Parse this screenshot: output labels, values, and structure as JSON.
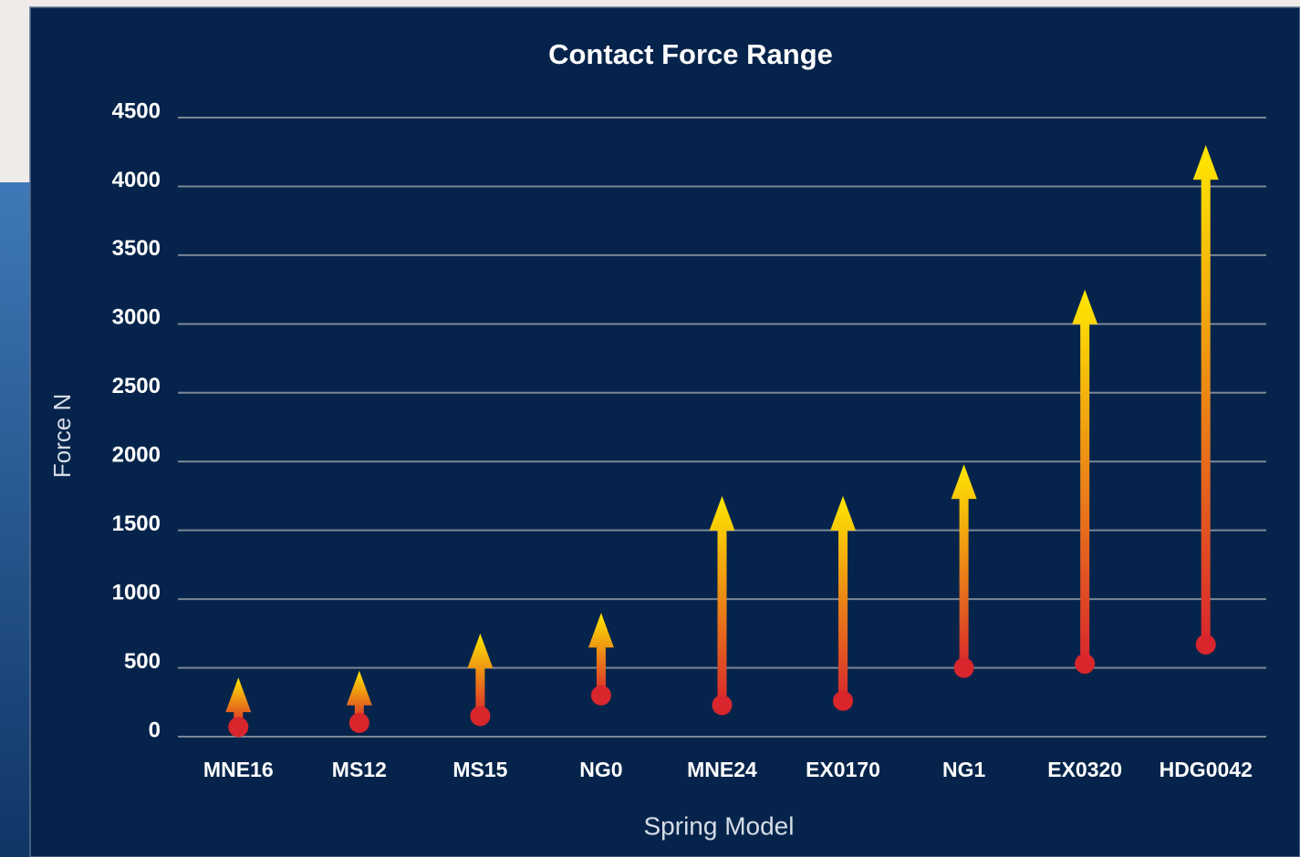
{
  "chart_data": {
    "type": "range-arrow",
    "title": "Contact Force Range",
    "x_label": "Spring Model",
    "y_label": "Force N",
    "categories": [
      "MNE16",
      "MS12",
      "MS15",
      "NG0",
      "MNE24",
      "EX0170",
      "NG1",
      "EX0320",
      "HDG0042"
    ],
    "low": [
      70,
      100,
      150,
      300,
      230,
      260,
      500,
      530,
      670
    ],
    "high": [
      430,
      480,
      750,
      900,
      1750,
      1750,
      1980,
      3250,
      4300
    ],
    "low_color": "#d8262c",
    "high_color": "#ffe800",
    "ylim": [
      0,
      4500
    ],
    "yticks": [
      0,
      500,
      1000,
      1500,
      2000,
      2500,
      3000,
      3500,
      4000,
      4500
    ],
    "grid": true
  }
}
